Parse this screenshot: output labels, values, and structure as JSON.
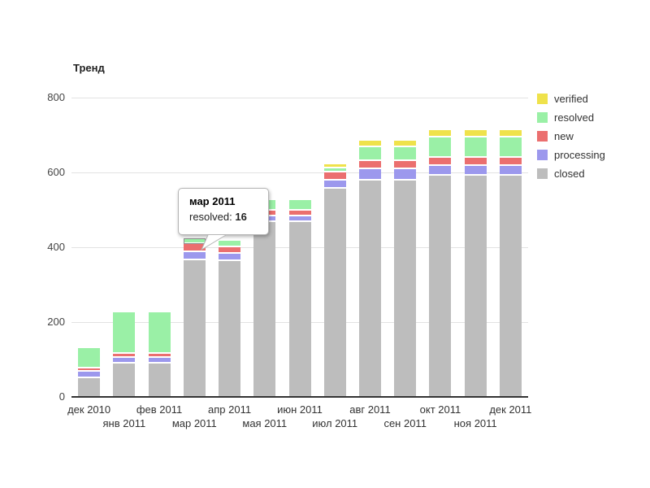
{
  "title": "Тренд",
  "y_axis": {
    "ticks": [
      "800",
      "600",
      "400",
      "200",
      "0"
    ]
  },
  "tooltip": {
    "title": "мар 2011",
    "label": "resolved: ",
    "value": "16"
  },
  "legend": {
    "items": [
      {
        "label": "verified",
        "color": "#efe24b"
      },
      {
        "label": "resolved",
        "color": "#9af0a6"
      },
      {
        "label": "new",
        "color": "#eb6f6f"
      },
      {
        "label": "processing",
        "color": "#9c98ed"
      },
      {
        "label": "closed",
        "color": "#bdbdbd"
      }
    ]
  },
  "chart_data": {
    "type": "bar",
    "stacked": true,
    "title": "Тренд",
    "ylim": [
      0,
      800
    ],
    "grid": true,
    "legend_position": "right",
    "categories": [
      "дек 2010",
      "янв 2011",
      "фев 2011",
      "мар 2011",
      "апр 2011",
      "мая 2011",
      "июн 2011",
      "июл 2011",
      "авг 2011",
      "сен 2011",
      "окт 2011",
      "ноя 2011",
      "дек 2011"
    ],
    "series": [
      {
        "name": "closed",
        "color": "#bdbdbd",
        "values": [
          50,
          90,
          90,
          365,
          362,
          468,
          468,
          556,
          578,
          578,
          592,
          592,
          592
        ]
      },
      {
        "name": "processing",
        "color": "#9c98ed",
        "values": [
          18,
          16,
          16,
          21,
          20,
          16,
          16,
          21,
          30,
          30,
          26,
          26,
          26
        ]
      },
      {
        "name": "new",
        "color": "#eb6f6f",
        "values": [
          9,
          10,
          10,
          21,
          18,
          16,
          16,
          21,
          22,
          22,
          22,
          22,
          22
        ]
      },
      {
        "name": "resolved",
        "color": "#9af0a6",
        "values": [
          55,
          110,
          110,
          16,
          18,
          28,
          28,
          10,
          38,
          38,
          55,
          55,
          55
        ]
      },
      {
        "name": "verified",
        "color": "#efe24b",
        "values": [
          0,
          0,
          0,
          0,
          0,
          0,
          0,
          10,
          18,
          18,
          20,
          20,
          20
        ]
      }
    ],
    "highlight": {
      "category_index": 3,
      "series": "resolved"
    }
  }
}
